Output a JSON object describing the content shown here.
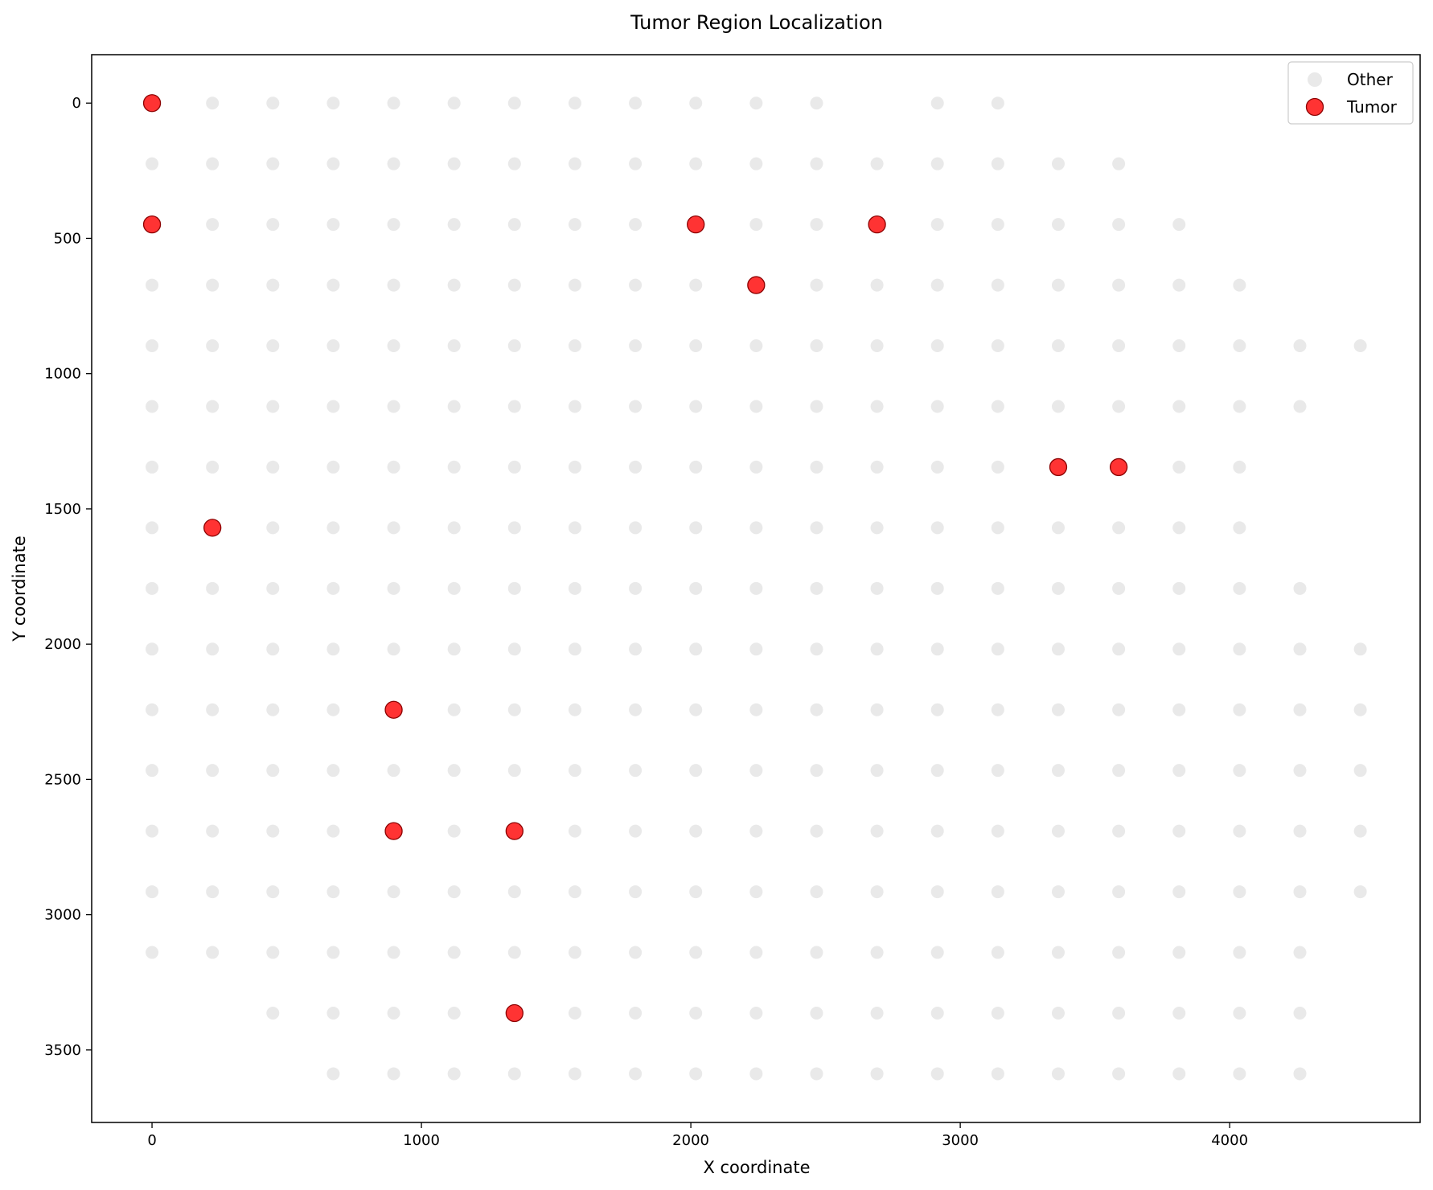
{
  "chart_data": {
    "type": "scatter",
    "title": "Tumor Region Localization",
    "xlabel": "X coordinate",
    "ylabel": "Y coordinate",
    "xlim": [
      -224,
      4707
    ],
    "ylim": [
      3768,
      -179
    ],
    "y_inverted": true,
    "grid": false,
    "legend_position": "top-right",
    "x_ticks": [
      0,
      1000,
      2000,
      3000,
      4000
    ],
    "x_tick_labels": [
      "0",
      "1000",
      "2000",
      "3000",
      "4000"
    ],
    "y_ticks": [
      0,
      500,
      1000,
      1500,
      2000,
      2500,
      3000,
      3500
    ],
    "y_tick_labels": [
      "0",
      "500",
      "1000",
      "1500",
      "2000",
      "2500",
      "3000",
      "3500"
    ],
    "grid_step": 224.25,
    "series": [
      {
        "name": "Other",
        "color": "#d3d3d3",
        "rows": [
          {
            "row": 0,
            "cols": [
              1,
              2,
              3,
              4,
              5,
              6,
              7,
              8,
              9,
              10,
              11,
              13,
              14
            ]
          },
          {
            "row": 1,
            "cols": [
              0,
              1,
              2,
              3,
              4,
              5,
              6,
              7,
              8,
              9,
              10,
              11,
              12,
              13,
              14,
              15,
              16
            ]
          },
          {
            "row": 2,
            "cols": [
              1,
              2,
              3,
              4,
              5,
              6,
              7,
              8,
              10,
              11,
              13,
              14,
              15,
              16,
              17
            ]
          },
          {
            "row": 3,
            "cols": [
              0,
              1,
              2,
              3,
              4,
              5,
              6,
              7,
              8,
              9,
              11,
              12,
              13,
              14,
              15,
              16,
              17,
              18
            ]
          },
          {
            "row": 4,
            "cols": [
              0,
              1,
              2,
              3,
              4,
              5,
              6,
              7,
              8,
              9,
              10,
              11,
              12,
              13,
              14,
              15,
              16,
              17,
              18,
              19,
              20
            ]
          },
          {
            "row": 5,
            "cols": [
              0,
              1,
              2,
              3,
              4,
              5,
              6,
              7,
              8,
              9,
              10,
              11,
              12,
              13,
              14,
              15,
              16,
              17,
              18,
              19
            ]
          },
          {
            "row": 6,
            "cols": [
              0,
              1,
              2,
              3,
              4,
              5,
              6,
              7,
              8,
              9,
              10,
              11,
              12,
              13,
              14,
              17,
              18
            ]
          },
          {
            "row": 7,
            "cols": [
              0,
              2,
              3,
              4,
              5,
              6,
              7,
              8,
              9,
              10,
              11,
              12,
              13,
              14,
              15,
              16,
              17,
              18
            ]
          },
          {
            "row": 8,
            "cols": [
              0,
              1,
              2,
              3,
              4,
              5,
              6,
              7,
              8,
              9,
              10,
              11,
              12,
              13,
              14,
              15,
              16,
              17,
              18,
              19
            ]
          },
          {
            "row": 9,
            "cols": [
              0,
              1,
              2,
              3,
              4,
              5,
              6,
              7,
              8,
              9,
              10,
              11,
              12,
              13,
              14,
              15,
              16,
              17,
              18,
              19,
              20
            ]
          },
          {
            "row": 10,
            "cols": [
              0,
              1,
              2,
              3,
              5,
              6,
              7,
              8,
              9,
              10,
              11,
              12,
              13,
              14,
              15,
              16,
              17,
              18,
              19,
              20
            ]
          },
          {
            "row": 11,
            "cols": [
              0,
              1,
              2,
              3,
              4,
              5,
              6,
              7,
              8,
              9,
              10,
              11,
              12,
              13,
              14,
              15,
              16,
              17,
              18,
              19,
              20
            ]
          },
          {
            "row": 12,
            "cols": [
              0,
              1,
              2,
              3,
              5,
              7,
              8,
              9,
              10,
              11,
              12,
              13,
              14,
              15,
              16,
              17,
              18,
              19,
              20
            ]
          },
          {
            "row": 13,
            "cols": [
              0,
              1,
              2,
              3,
              4,
              5,
              6,
              7,
              8,
              9,
              10,
              11,
              12,
              13,
              14,
              15,
              16,
              17,
              18,
              19,
              20
            ]
          },
          {
            "row": 14,
            "cols": [
              0,
              1,
              2,
              3,
              4,
              5,
              6,
              7,
              8,
              9,
              10,
              11,
              12,
              13,
              14,
              15,
              16,
              17,
              18,
              19
            ]
          },
          {
            "row": 15,
            "cols": [
              2,
              3,
              4,
              5,
              7,
              8,
              9,
              10,
              11,
              12,
              13,
              14,
              15,
              16,
              17,
              18,
              19
            ]
          },
          {
            "row": 16,
            "cols": [
              3,
              4,
              5,
              6,
              7,
              8,
              9,
              10,
              11,
              12,
              13,
              14,
              15,
              16,
              17,
              18,
              19
            ]
          }
        ]
      },
      {
        "name": "Tumor",
        "color": "#ff0000",
        "edge_color": "#8b0000",
        "points": [
          [
            0,
            0
          ],
          [
            0,
            448.5
          ],
          [
            2018.25,
            448.5
          ],
          [
            2691,
            448.5
          ],
          [
            2242.5,
            672.75
          ],
          [
            3363.75,
            1345.5
          ],
          [
            3588,
            1345.5
          ],
          [
            224.25,
            1569.75
          ],
          [
            897,
            2242.5
          ],
          [
            897,
            2691
          ],
          [
            1345.5,
            2691
          ],
          [
            1345.5,
            3363.75
          ]
        ]
      }
    ]
  }
}
